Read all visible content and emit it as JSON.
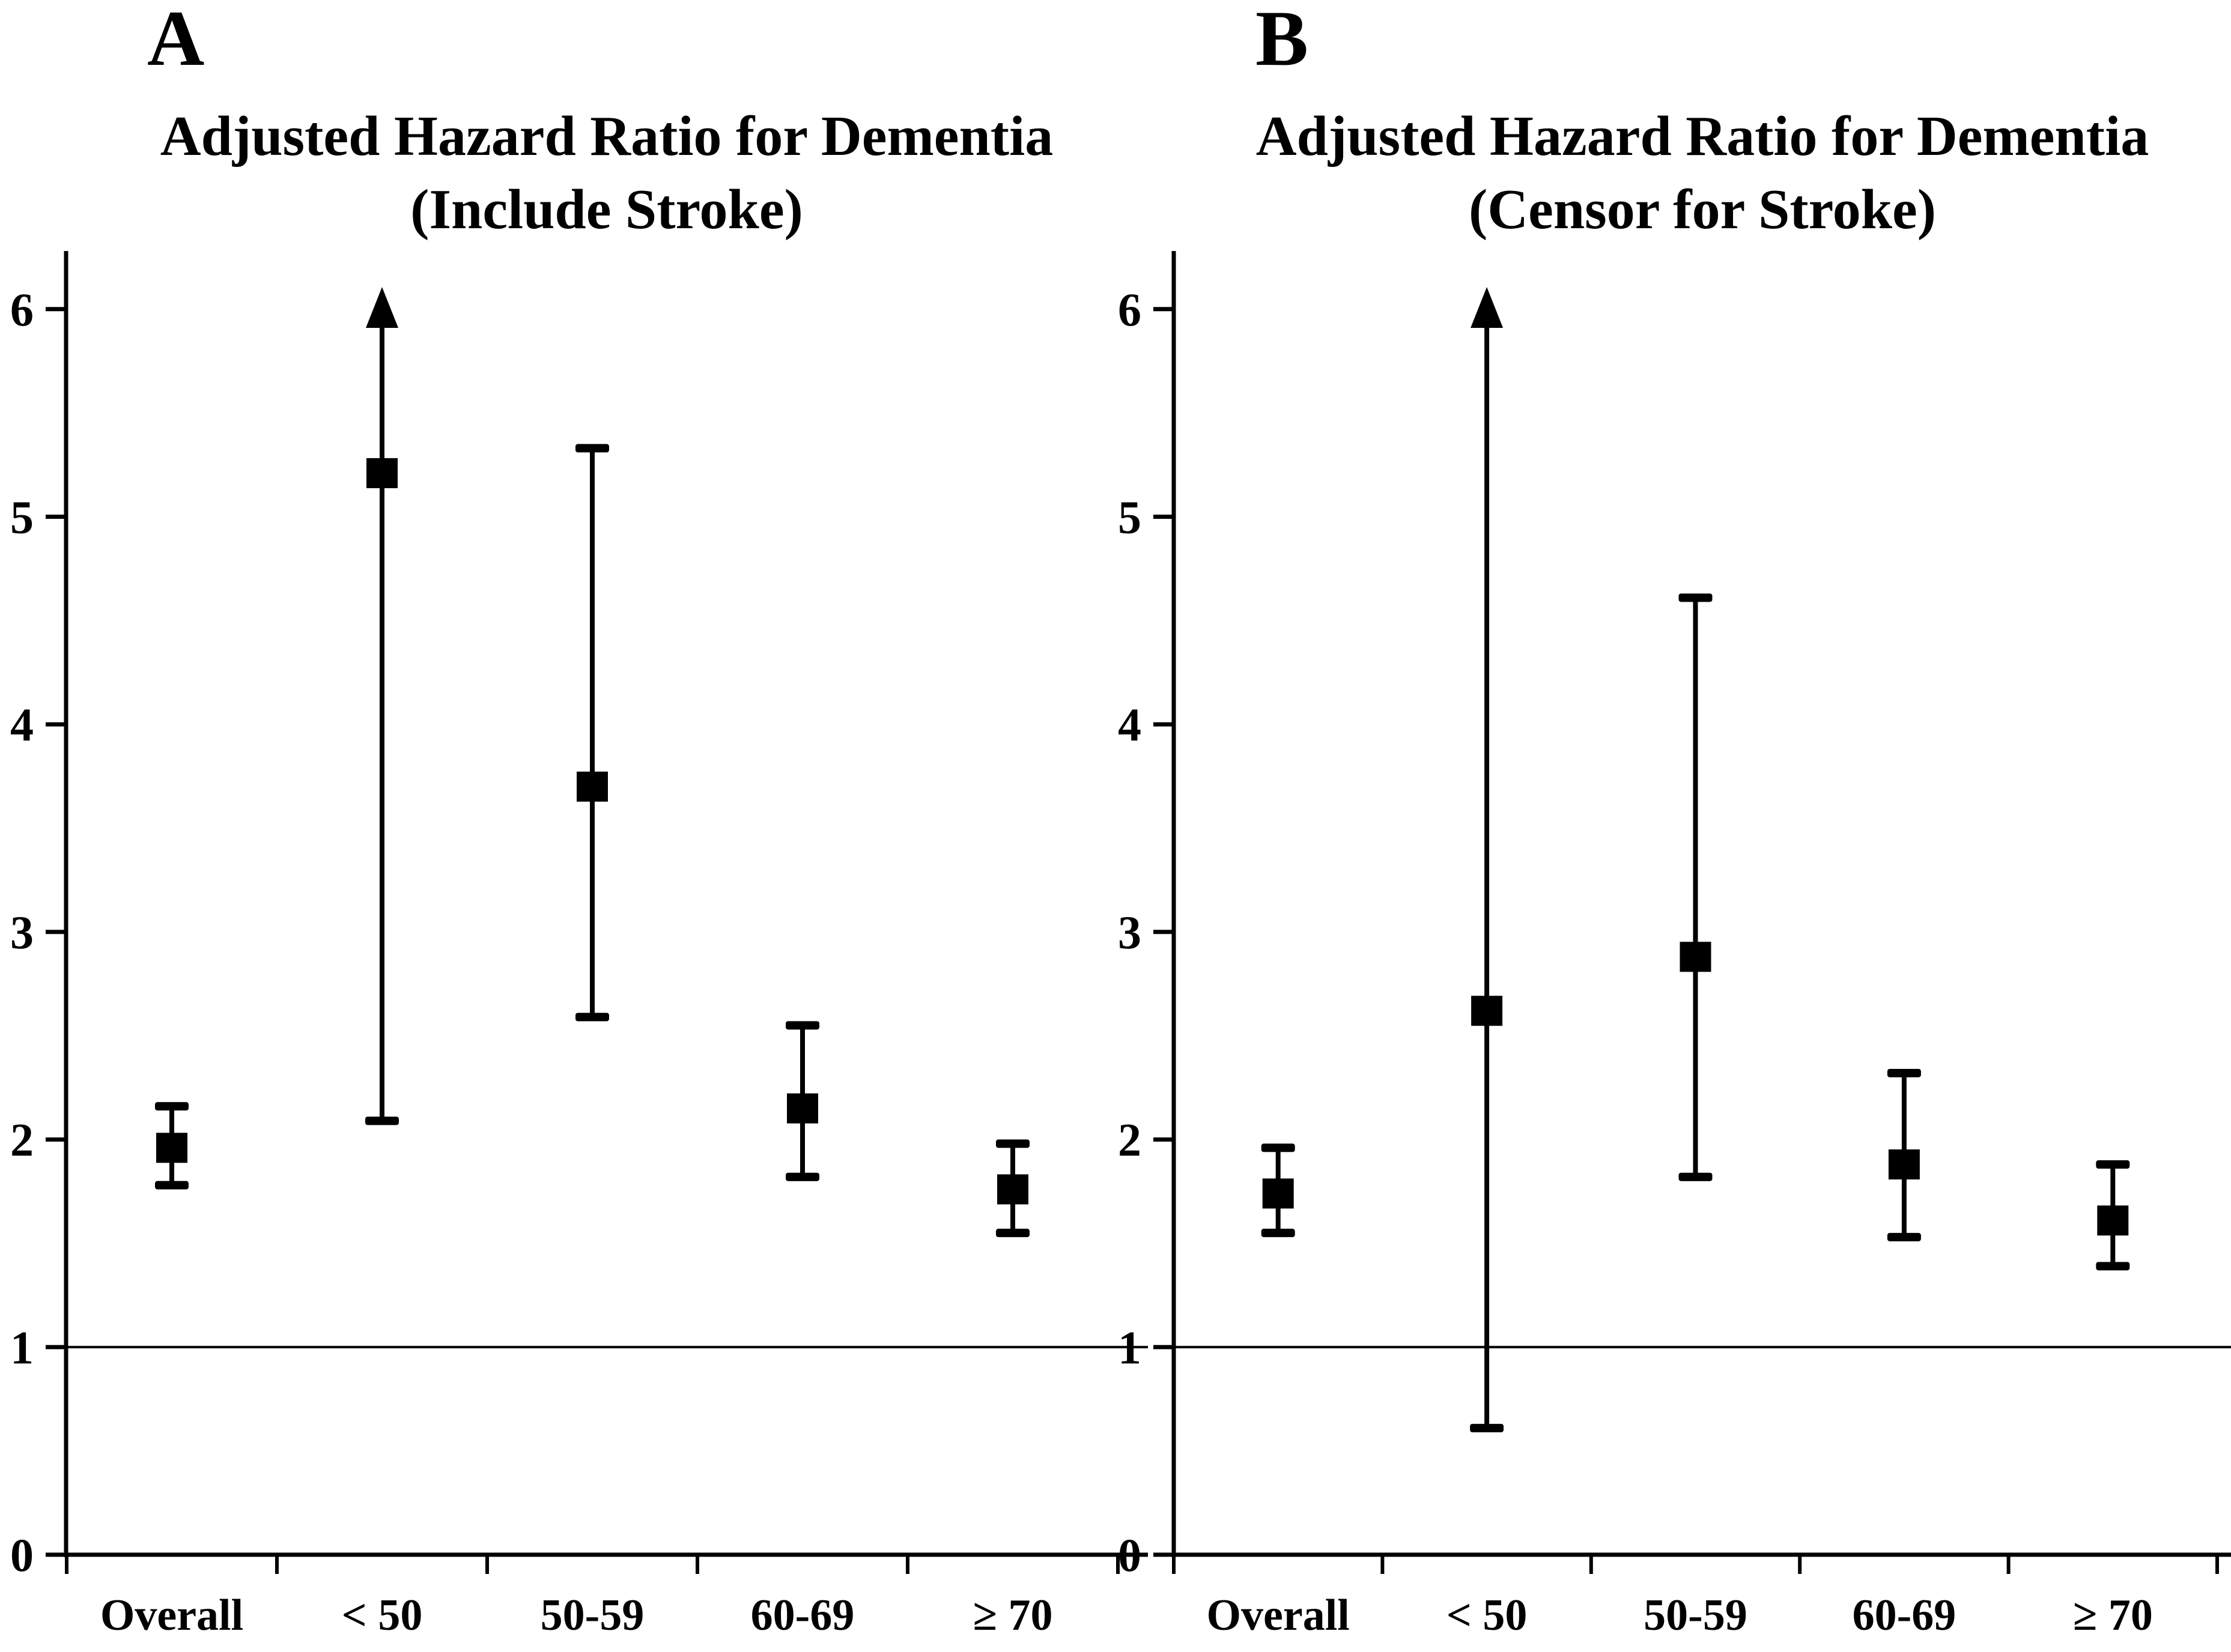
{
  "figure": {
    "background": "#ffffff",
    "foreground": "#000000",
    "description": "Two-panel forest-style plot of adjusted hazard ratios for dementia by age group"
  },
  "chart_data": [
    {
      "type": "scatter",
      "subtype": "point-estimates-with-error-bars",
      "panel_label": "A",
      "title_line1": "Adjusted Hazard Ratio for Dementia",
      "title_line2": "(Include Stroke)",
      "title": "Adjusted Hazard Ratio for Dementia (Include Stroke)",
      "categories": [
        "Overall",
        "< 50",
        "50-59",
        "60-69",
        "≥ 70"
      ],
      "series": [
        {
          "name": "Adjusted hazard ratio (filled square)",
          "values": [
            1.96,
            5.21,
            3.7,
            2.15,
            1.76
          ],
          "ci_lower": [
            1.78,
            2.09,
            2.59,
            1.82,
            1.55
          ],
          "ci_upper": [
            2.16,
            6.0,
            5.33,
            2.55,
            1.98
          ],
          "ci_upper_offscale": [
            false,
            true,
            false,
            false,
            false
          ]
        }
      ],
      "marker": "filled-square",
      "offscale_symbol": "up-arrow",
      "xlabel": "",
      "ylabel": "",
      "ylim": [
        0,
        6.2
      ],
      "yticks": [
        0,
        1,
        2,
        3,
        4,
        5,
        6
      ],
      "reference_line_y": 1,
      "grid": false,
      "legend": false
    },
    {
      "type": "scatter",
      "subtype": "point-estimates-with-error-bars",
      "panel_label": "B",
      "title_line1": "Adjusted Hazard Ratio for Dementia",
      "title_line2": "(Censor for Stroke)",
      "title": "Adjusted Hazard Ratio for Dementia (Censor for Stroke)",
      "categories": [
        "Overall",
        "< 50",
        "50-59",
        "60-69",
        "≥ 70"
      ],
      "series": [
        {
          "name": "Adjusted hazard ratio (filled square)",
          "values": [
            1.74,
            2.62,
            2.88,
            1.88,
            1.61
          ],
          "ci_lower": [
            1.55,
            0.61,
            1.82,
            1.53,
            1.39
          ],
          "ci_upper": [
            1.96,
            6.0,
            4.61,
            2.32,
            1.88
          ],
          "ci_upper_offscale": [
            false,
            true,
            false,
            false,
            false
          ]
        }
      ],
      "marker": "filled-square",
      "offscale_symbol": "up-arrow",
      "xlabel": "",
      "ylabel": "",
      "ylim": [
        0,
        6.2
      ],
      "yticks": [
        0,
        1,
        2,
        3,
        4,
        5,
        6
      ],
      "reference_line_y": 1,
      "grid": false,
      "legend": false
    }
  ]
}
